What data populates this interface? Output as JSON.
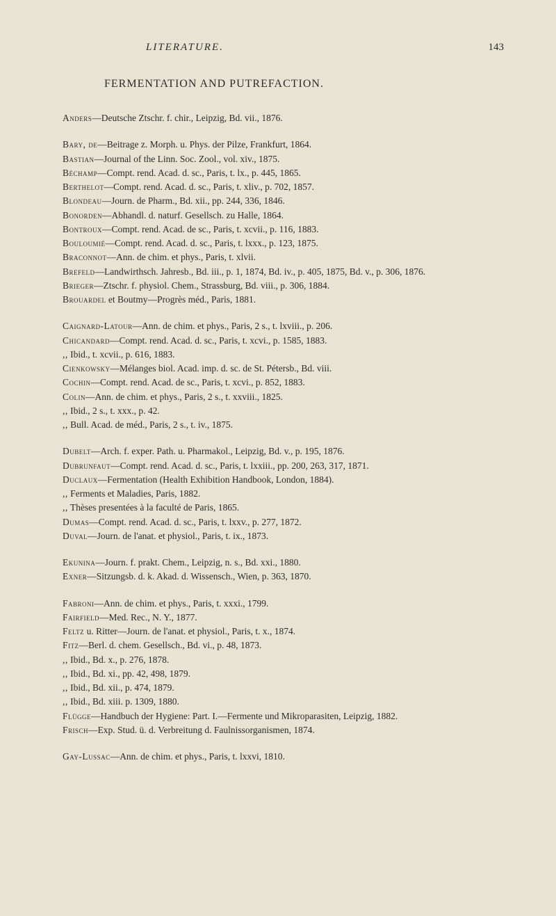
{
  "header": {
    "running_title": "LITERATURE.",
    "page_number": "143"
  },
  "section_title": "FERMENTATION AND PUTREFACTION.",
  "blocks": [
    {
      "entries": [
        {
          "author": "Anders",
          "rest": "—Deutsche Ztschr. f. chir., Leipzig, Bd. vii., 1876."
        }
      ]
    },
    {
      "entries": [
        {
          "author": "Bary, de",
          "rest": "—Beitrage z. Morph. u. Phys. der Pilze, Frankfurt, 1864."
        },
        {
          "author": "Bastian",
          "rest": "—Journal of the Linn. Soc. Zool., vol. xiv., 1875."
        },
        {
          "author": "Béchamp",
          "rest": "—Compt. rend. Acad. d. sc., Paris, t. lx., p. 445, 1865."
        },
        {
          "author": "Berthelot",
          "rest": "—Compt. rend. Acad. d. sc., Paris, t. xliv., p. 702, 1857."
        },
        {
          "author": "Blondeau",
          "rest": "—Journ. de Pharm., Bd. xii., pp. 244, 336, 1846."
        },
        {
          "author": "Bonorden",
          "rest": "—Abhandl. d. naturf. Gesellsch. zu Halle, 1864."
        },
        {
          "author": "Bontroux",
          "rest": "—Compt. rend. Acad. de sc., Paris, t. xcvii., p. 116, 1883."
        },
        {
          "author": "Bouloumié",
          "rest": "—Compt. rend. Acad. d. sc., Paris, t. lxxx., p. 123, 1875."
        },
        {
          "author": "Braconnot",
          "rest": "—Ann. de chim. et phys., Paris, t. xlvii."
        },
        {
          "author": "Brefeld",
          "rest": "—Landwirthsch. Jahresb., Bd. iii., p. 1, 1874, Bd. iv., p. 405, 1875, Bd. v., p. 306, 1876."
        },
        {
          "author": "Brieger",
          "rest": "—Ztschr. f. physiol. Chem., Strassburg, Bd. viii., p. 306, 1884."
        },
        {
          "author": "Brouardel",
          "rest": " et Boutmy—Progrès méd., Paris, 1881."
        }
      ]
    },
    {
      "entries": [
        {
          "author": "Caignard-Latour",
          "rest": "—Ann. de chim. et phys., Paris, 2 s., t. lxviii., p. 206."
        },
        {
          "author": "Chicandard",
          "rest": "—Compt. rend. Acad. d. sc., Paris, t. xcvi., p. 1585, 1883."
        },
        {
          "author": "        ,,",
          "rest": "        Ibid., t. xcvii., p. 616, 1883."
        },
        {
          "author": "Cienkowsky",
          "rest": "—Mélanges biol. Acad. imp. d. sc. de St. Pétersb., Bd. viii."
        },
        {
          "author": "Cochin",
          "rest": "—Compt. rend. Acad. de sc., Paris, t. xcvi., p. 852, 1883."
        },
        {
          "author": "Colin",
          "rest": "—Ann. de chim. et phys., Paris, 2 s., t. xxviii., 1825."
        },
        {
          "author": "    ,,",
          "rest": "    Ibid., 2 s., t. xxx., p. 42."
        },
        {
          "author": "    ,,",
          "rest": "    Bull. Acad. de méd., Paris, 2 s., t. iv., 1875."
        }
      ]
    },
    {
      "entries": [
        {
          "author": "Dubelt",
          "rest": "—Arch. f. exper. Path. u. Pharmakol., Leipzig, Bd. v., p. 195, 1876."
        },
        {
          "author": "Dubrunfaut",
          "rest": "—Compt. rend. Acad. d. sc., Paris, t. lxxiii., pp. 200, 263, 317, 1871."
        },
        {
          "author": "Duclaux",
          "rest": "—Fermentation (Health Exhibition Handbook, London, 1884)."
        },
        {
          "author": "      ,,",
          "rest": "      Ferments et Maladies, Paris, 1882."
        },
        {
          "author": "      ,,",
          "rest": "      Thèses presentées à la faculté de Paris, 1865."
        },
        {
          "author": "Dumas",
          "rest": "—Compt. rend. Acad. d. sc., Paris, t. lxxv., p. 277, 1872."
        },
        {
          "author": "Duval",
          "rest": "—Journ. de l'anat. et physiol., Paris, t. ix., 1873."
        }
      ]
    },
    {
      "entries": [
        {
          "author": "Ekunina",
          "rest": "—Journ. f. prakt. Chem., Leipzig, n. s., Bd. xxi., 1880."
        },
        {
          "author": "Exner",
          "rest": "—Sitzungsb. d. k. Akad. d. Wissensch., Wien, p. 363, 1870."
        }
      ]
    },
    {
      "entries": [
        {
          "author": "Fabroni",
          "rest": "—Ann. de chim. et phys., Paris, t. xxxi., 1799."
        },
        {
          "author": "Fairfield",
          "rest": "—Med. Rec., N. Y., 1877."
        },
        {
          "author": "Feltz",
          "rest": " u. Ritter—Journ. de l'anat. et physiol., Paris, t. x., 1874."
        },
        {
          "author": "Fitz",
          "rest": "—Berl. d. chem. Gesellsch., Bd. vi., p. 48, 1873."
        },
        {
          "author": "    ,,",
          "rest": "    Ibid., Bd. x., p. 276, 1878."
        },
        {
          "author": "    ,,",
          "rest": "    Ibid., Bd. xi., pp. 42, 498, 1879."
        },
        {
          "author": "    ,,",
          "rest": "    Ibid., Bd. xii., p. 474, 1879."
        },
        {
          "author": "    ,,",
          "rest": "    Ibid., Bd. xiii. p. 1309, 1880."
        },
        {
          "author": "Flügge",
          "rest": "—Handbuch der Hygiene: Part. I.—Fermente und Mikroparasiten, Leipzig, 1882."
        },
        {
          "author": "Frisch",
          "rest": "—Exp. Stud. ü. d. Verbreitung d. Faulnissorganismen, 1874."
        }
      ]
    },
    {
      "entries": [
        {
          "author": "Gay-Lussac",
          "rest": "—Ann. de chim. et phys., Paris, t. lxxvi, 1810."
        }
      ]
    }
  ]
}
